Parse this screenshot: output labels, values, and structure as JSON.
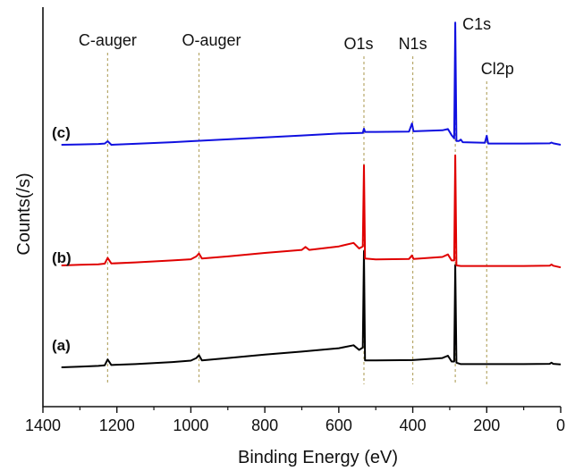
{
  "chart_data": {
    "type": "line",
    "xlabel": "Binding Energy (eV)",
    "ylabel": "Counts(/s)",
    "xlim": [
      1400,
      0
    ],
    "x_reversed": true,
    "x_ticks": [
      1400,
      1200,
      1000,
      800,
      600,
      400,
      200,
      0
    ],
    "y_ticks_shown": false,
    "grid": false,
    "legend": "none",
    "peak_markers": [
      {
        "label": "C-auger",
        "x": 1225
      },
      {
        "label": "O-auger",
        "x": 978
      },
      {
        "label": "O1s",
        "x": 532
      },
      {
        "label": "N1s",
        "x": 400
      },
      {
        "label": "C1s",
        "x": 285
      },
      {
        "label": "Cl2p",
        "x": 200
      }
    ],
    "series": [
      {
        "tag": "(a)",
        "color": "#000000",
        "points": [
          [
            1350,
            0.0
          ],
          [
            1300,
            0.006
          ],
          [
            1250,
            0.012
          ],
          [
            1233,
            0.018
          ],
          [
            1225,
            0.068
          ],
          [
            1215,
            0.02
          ],
          [
            1150,
            0.028
          ],
          [
            1050,
            0.045
          ],
          [
            1000,
            0.058
          ],
          [
            985,
            0.08
          ],
          [
            978,
            0.105
          ],
          [
            970,
            0.06
          ],
          [
            900,
            0.08
          ],
          [
            800,
            0.11
          ],
          [
            700,
            0.135
          ],
          [
            600,
            0.165
          ],
          [
            560,
            0.19
          ],
          [
            545,
            0.15
          ],
          [
            535,
            0.17
          ],
          [
            532,
            1.0
          ],
          [
            529,
            0.06
          ],
          [
            500,
            0.06
          ],
          [
            400,
            0.062
          ],
          [
            320,
            0.08
          ],
          [
            305,
            0.1
          ],
          [
            295,
            0.05
          ],
          [
            288,
            0.05
          ],
          [
            285,
            0.88
          ],
          [
            282,
            0.04
          ],
          [
            270,
            0.028
          ],
          [
            200,
            0.028
          ],
          [
            100,
            0.028
          ],
          [
            30,
            0.03
          ],
          [
            25,
            0.04
          ],
          [
            20,
            0.03
          ],
          [
            0,
            0.025
          ]
        ]
      },
      {
        "tag": "(b)",
        "color": "#e00000",
        "points": [
          [
            1350,
            0.0
          ],
          [
            1300,
            0.006
          ],
          [
            1250,
            0.012
          ],
          [
            1233,
            0.018
          ],
          [
            1225,
            0.075
          ],
          [
            1215,
            0.02
          ],
          [
            1150,
            0.03
          ],
          [
            1050,
            0.05
          ],
          [
            1000,
            0.062
          ],
          [
            985,
            0.09
          ],
          [
            978,
            0.12
          ],
          [
            970,
            0.07
          ],
          [
            900,
            0.09
          ],
          [
            800,
            0.125
          ],
          [
            700,
            0.155
          ],
          [
            690,
            0.185
          ],
          [
            680,
            0.155
          ],
          [
            600,
            0.19
          ],
          [
            560,
            0.225
          ],
          [
            545,
            0.17
          ],
          [
            535,
            0.19
          ],
          [
            532,
            1.0
          ],
          [
            529,
            0.07
          ],
          [
            500,
            0.06
          ],
          [
            410,
            0.065
          ],
          [
            402,
            0.1
          ],
          [
            398,
            0.065
          ],
          [
            320,
            0.085
          ],
          [
            305,
            0.11
          ],
          [
            295,
            0.05
          ],
          [
            288,
            0.05
          ],
          [
            285,
            1.1
          ],
          [
            282,
            0.0
          ],
          [
            270,
            -0.005
          ],
          [
            200,
            -0.005
          ],
          [
            100,
            -0.005
          ],
          [
            30,
            -0.003
          ],
          [
            25,
            0.01
          ],
          [
            20,
            -0.003
          ],
          [
            0,
            -0.02
          ]
        ]
      },
      {
        "tag": "(c)",
        "color": "#1010e0",
        "points": [
          [
            1350,
            0.0
          ],
          [
            1300,
            0.005
          ],
          [
            1250,
            0.012
          ],
          [
            1233,
            0.02
          ],
          [
            1225,
            0.055
          ],
          [
            1215,
            0.0
          ],
          [
            1150,
            0.015
          ],
          [
            1050,
            0.04
          ],
          [
            1000,
            0.055
          ],
          [
            900,
            0.085
          ],
          [
            800,
            0.115
          ],
          [
            700,
            0.145
          ],
          [
            600,
            0.175
          ],
          [
            540,
            0.185
          ],
          [
            535,
            0.185
          ],
          [
            532,
            0.25
          ],
          [
            529,
            0.2
          ],
          [
            500,
            0.2
          ],
          [
            410,
            0.205
          ],
          [
            402,
            0.33
          ],
          [
            398,
            0.21
          ],
          [
            320,
            0.225
          ],
          [
            305,
            0.245
          ],
          [
            295,
            0.15
          ],
          [
            288,
            0.1
          ],
          [
            285,
            1.9
          ],
          [
            282,
            0.06
          ],
          [
            275,
            0.06
          ],
          [
            270,
            0.08
          ],
          [
            265,
            0.04
          ],
          [
            205,
            0.03
          ],
          [
            200,
            0.14
          ],
          [
            196,
            0.02
          ],
          [
            100,
            0.02
          ],
          [
            30,
            0.022
          ],
          [
            25,
            0.035
          ],
          [
            20,
            0.022
          ],
          [
            0,
            0.0
          ]
        ]
      }
    ]
  }
}
